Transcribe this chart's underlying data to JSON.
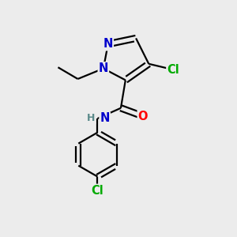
{
  "background_color": "#ececec",
  "atom_colors": {
    "C": "#000000",
    "N": "#0000cc",
    "O": "#ff0000",
    "Cl": "#00aa00",
    "H": "#5a8a8a"
  },
  "bond_color": "#000000",
  "bond_width": 1.6,
  "font_size": 10.5,
  "fig_size": [
    3.0,
    3.0
  ],
  "dpi": 100,
  "xlim": [
    0,
    10
  ],
  "ylim": [
    0,
    10
  ]
}
